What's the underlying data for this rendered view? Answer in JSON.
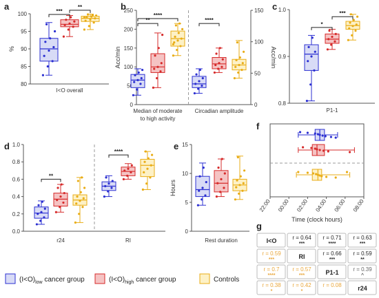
{
  "colors": {
    "low": "#2b2fd1",
    "low_fill": "#d8dbf6",
    "high": "#d62a2a",
    "high_fill": "#f5c3c3",
    "ctrl": "#e9ad17",
    "ctrl_fill": "#fdf1c6",
    "axis": "#555555",
    "divider": "#999999",
    "sig": "#222222",
    "table_black": "#222222",
    "table_orange": "#e9a63a"
  },
  "panel_letters": {
    "a": "a",
    "b": "b",
    "c": "c",
    "d": "d",
    "e": "e",
    "f": "f",
    "g": "g"
  },
  "chart_data": [
    {
      "id": "a",
      "type": "box",
      "ylabel": "%",
      "ylim": [
        80,
        100
      ],
      "yticks": [
        "80",
        "85",
        "90",
        "95",
        "100"
      ],
      "xlabels": [
        "I<O overall"
      ],
      "groups": [
        {
          "x": 0,
          "series": "low",
          "min": 82.5,
          "q1": 86.5,
          "median": 90.0,
          "q3": 93.0,
          "max": 97.5,
          "points": [
            82.5,
            85,
            86.5,
            88,
            89.5,
            90.5,
            92,
            93,
            95,
            97
          ]
        },
        {
          "x": 0,
          "series": "high",
          "min": 93.5,
          "q1": 96.3,
          "median": 97.0,
          "q3": 98.3,
          "max": 99.5,
          "points": [
            93.5,
            95.5,
            96.3,
            96.8,
            97.2,
            97.8,
            98.3,
            99
          ]
        },
        {
          "x": 0,
          "series": "ctrl",
          "min": 95.5,
          "q1": 97.8,
          "median": 98.7,
          "q3": 99.3,
          "max": 99.9,
          "points": [
            95.5,
            96.5,
            97.5,
            98,
            98.3,
            98.7,
            99,
            99.2,
            99.5,
            99.8,
            99.6,
            98.9
          ]
        }
      ],
      "significance": [
        {
          "from": 0,
          "to": 1,
          "y": 99.8,
          "label": "***"
        },
        {
          "from": 1,
          "to": 2,
          "y": 101.0,
          "label": "**"
        }
      ]
    },
    {
      "id": "b",
      "type": "box",
      "ylabel": "Acc/min",
      "ylabel_right": "Acc/min",
      "ylim": [
        0,
        250
      ],
      "yticks": [
        "0",
        "50",
        "100",
        "150",
        "200",
        "250"
      ],
      "ylim_right": [
        0,
        150
      ],
      "yticks_right": [
        "0",
        "50",
        "100",
        "150"
      ],
      "xlabels": [
        "Median of moderate",
        "to high activity",
        "Circadian amplitude"
      ],
      "groups": [
        {
          "x": 0,
          "series": "low",
          "min": 25,
          "q1": 45,
          "median": 65,
          "q3": 80,
          "max": 95,
          "points": [
            25,
            40,
            55,
            60,
            65,
            70,
            78,
            85,
            92
          ]
        },
        {
          "x": 0,
          "series": "high",
          "min": 45,
          "q1": 85,
          "median": 100,
          "q3": 135,
          "max": 190,
          "points": [
            45,
            70,
            88,
            95,
            100,
            110,
            130,
            150,
            185
          ]
        },
        {
          "x": 0,
          "series": "ctrl",
          "min": 130,
          "q1": 155,
          "median": 175,
          "q3": 195,
          "max": 215,
          "points": [
            130,
            145,
            155,
            165,
            170,
            175,
            180,
            190,
            200,
            210,
            215,
            160
          ]
        },
        {
          "x": 1,
          "series": "low",
          "min": 30,
          "q1": 45,
          "median": 55,
          "q3": 75,
          "max": 95,
          "points": [
            30,
            42,
            50,
            55,
            62,
            70,
            80,
            92
          ]
        },
        {
          "x": 1,
          "series": "high",
          "min": 85,
          "q1": 95,
          "median": 108,
          "q3": 125,
          "max": 150,
          "points": [
            85,
            95,
            100,
            105,
            110,
            120,
            135,
            150
          ]
        },
        {
          "x": 1,
          "series": "ctrl",
          "min": 70,
          "q1": 92,
          "median": 105,
          "q3": 120,
          "max": 170,
          "points": [
            70,
            85,
            92,
            100,
            105,
            110,
            118,
            125,
            140,
            165
          ]
        }
      ],
      "significance": [
        {
          "x": 0,
          "from": 0,
          "to": 1,
          "y": 215,
          "label": "**"
        },
        {
          "x": 0,
          "from": 0,
          "to": 2,
          "y": 228,
          "label": "****"
        },
        {
          "x": 1,
          "from": 0,
          "to": 1,
          "y": 215,
          "label": "****"
        }
      ]
    },
    {
      "id": "c",
      "type": "box",
      "ylim": [
        0.8,
        1.0
      ],
      "yticks": [
        "0.8",
        "0.9",
        "1.0"
      ],
      "xlabels": [
        "P1-1"
      ],
      "groups": [
        {
          "x": 0,
          "series": "low",
          "min": 0.805,
          "q1": 0.87,
          "median": 0.905,
          "q3": 0.925,
          "max": 0.945,
          "points": [
            0.805,
            0.84,
            0.87,
            0.89,
            0.9,
            0.91,
            0.92,
            0.94
          ]
        },
        {
          "x": 0,
          "series": "high",
          "min": 0.915,
          "q1": 0.928,
          "median": 0.937,
          "q3": 0.948,
          "max": 0.958,
          "points": [
            0.915,
            0.925,
            0.932,
            0.937,
            0.942,
            0.948,
            0.955
          ]
        },
        {
          "x": 0,
          "series": "ctrl",
          "min": 0.935,
          "q1": 0.958,
          "median": 0.966,
          "q3": 0.975,
          "max": 0.99,
          "points": [
            0.935,
            0.945,
            0.955,
            0.96,
            0.965,
            0.968,
            0.972,
            0.978,
            0.985,
            0.99
          ]
        }
      ],
      "significance": [
        {
          "from": 0,
          "to": 1,
          "y": 0.962,
          "label": "*"
        },
        {
          "from": 1,
          "to": 2,
          "y": 0.985,
          "label": "***"
        }
      ]
    },
    {
      "id": "d",
      "type": "box",
      "ylim": [
        0,
        1.0
      ],
      "yticks": [
        "0.0",
        "0.2",
        "0.4",
        "0.6",
        "0.8",
        "1.0"
      ],
      "xlabels": [
        "r24",
        "RI"
      ],
      "groups": [
        {
          "x": 0,
          "series": "low",
          "min": 0.08,
          "q1": 0.15,
          "median": 0.21,
          "q3": 0.28,
          "max": 0.35,
          "points": [
            0.08,
            0.12,
            0.16,
            0.2,
            0.22,
            0.26,
            0.3,
            0.34
          ]
        },
        {
          "x": 0,
          "series": "high",
          "min": 0.22,
          "q1": 0.29,
          "median": 0.37,
          "q3": 0.44,
          "max": 0.54,
          "points": [
            0.22,
            0.28,
            0.33,
            0.36,
            0.4,
            0.44,
            0.5,
            0.54
          ]
        },
        {
          "x": 0,
          "series": "ctrl",
          "min": 0.1,
          "q1": 0.3,
          "median": 0.36,
          "q3": 0.42,
          "max": 0.62,
          "points": [
            0.1,
            0.2,
            0.28,
            0.32,
            0.35,
            0.38,
            0.4,
            0.45,
            0.5,
            0.58,
            0.62
          ]
        },
        {
          "x": 1,
          "series": "low",
          "min": 0.4,
          "q1": 0.47,
          "median": 0.52,
          "q3": 0.57,
          "max": 0.64,
          "points": [
            0.4,
            0.46,
            0.5,
            0.52,
            0.55,
            0.58,
            0.62
          ]
        },
        {
          "x": 1,
          "series": "high",
          "min": 0.6,
          "q1": 0.64,
          "median": 0.69,
          "q3": 0.74,
          "max": 0.78,
          "points": [
            0.6,
            0.64,
            0.68,
            0.7,
            0.72,
            0.76
          ]
        },
        {
          "x": 1,
          "series": "ctrl",
          "min": 0.48,
          "q1": 0.63,
          "median": 0.76,
          "q3": 0.83,
          "max": 0.92,
          "points": [
            0.48,
            0.55,
            0.62,
            0.68,
            0.72,
            0.76,
            0.8,
            0.84,
            0.88,
            0.92
          ]
        }
      ],
      "significance": [
        {
          "x": 0,
          "from": 0,
          "to": 1,
          "y": 0.6,
          "label": "**"
        },
        {
          "x": 1,
          "from": 0,
          "to": 1,
          "y": 0.88,
          "label": "****"
        }
      ]
    },
    {
      "id": "e",
      "type": "box",
      "ylabel": "Hours",
      "ylim": [
        0,
        15
      ],
      "yticks": [
        "0",
        "5",
        "10",
        "15"
      ],
      "xlabels": [
        "Rest duration"
      ],
      "groups": [
        {
          "x": 0,
          "series": "low",
          "min": 4.5,
          "q1": 6.0,
          "median": 7.2,
          "q3": 9.5,
          "max": 11.8,
          "points": [
            4.5,
            5.5,
            6.2,
            7,
            7.5,
            8.5,
            9.5,
            11
          ]
        },
        {
          "x": 0,
          "series": "high",
          "min": 6.0,
          "q1": 6.8,
          "median": 8.3,
          "q3": 10.5,
          "max": 12.5,
          "points": [
            6,
            6.8,
            7.5,
            8.3,
            9,
            10,
            11,
            12.5
          ]
        },
        {
          "x": 0,
          "series": "ctrl",
          "min": 5.5,
          "q1": 7.0,
          "median": 8.0,
          "q3": 9.0,
          "max": 13.0,
          "points": [
            5.5,
            6.5,
            7,
            7.6,
            8,
            8.3,
            8.8,
            9.5,
            10.5,
            12.8
          ]
        }
      ]
    },
    {
      "id": "f",
      "type": "box-horizontal",
      "xlabel": "Time (clock hours)",
      "xlim": [
        -2,
        8
      ],
      "xticks": [
        "22:00",
        "00:00",
        "02:00",
        "04:00",
        "06:00",
        "08:00"
      ],
      "groups": [
        {
          "series": "low",
          "min": 1.0,
          "q1": 2.8,
          "median": 3.3,
          "q3": 3.8,
          "max": 5.2,
          "points": [
            1.2,
            2.0,
            2.8,
            3.1,
            3.3,
            3.6,
            3.9,
            4.5,
            5.0
          ]
        },
        {
          "series": "high",
          "min": 1.0,
          "q1": 2.5,
          "median": 3.0,
          "q3": 3.8,
          "max": 7.0,
          "points": [
            1.5,
            2.4,
            2.8,
            3.0,
            3.3,
            3.7,
            4.2,
            6.5
          ]
        },
        {
          "series": "ctrl",
          "min": 0.8,
          "q1": 2.5,
          "median": 3.1,
          "q3": 3.5,
          "max": 6.5,
          "points": [
            1.0,
            2.0,
            2.6,
            2.9,
            3.1,
            3.3,
            3.5,
            4.0,
            5.0,
            6.2
          ]
        }
      ]
    },
    {
      "id": "g",
      "type": "table",
      "cells": [
        [
          {
            "r": "I<O",
            "s": "",
            "c": "label"
          },
          {
            "r": "r = 0.64",
            "s": "***",
            "c": "black"
          },
          {
            "r": "r = 0.71",
            "s": "****",
            "c": "black"
          },
          {
            "r": "r = 0.63",
            "s": "***",
            "c": "black"
          }
        ],
        [
          {
            "r": "r = 0.59",
            "s": "***",
            "c": "orange"
          },
          {
            "r": "RI",
            "s": "",
            "c": "label"
          },
          {
            "r": "r = 0.66",
            "s": "***",
            "c": "black"
          },
          {
            "r": "r = 0.59",
            "s": "**",
            "c": "black"
          }
        ],
        [
          {
            "r": "r = 0.7",
            "s": "****",
            "c": "orange"
          },
          {
            "r": "r = 0.57",
            "s": "***",
            "c": "orange"
          },
          {
            "r": "P1-1",
            "s": "",
            "c": "label"
          },
          {
            "r": "r = 0.39",
            "s": "^",
            "c": "gray"
          }
        ],
        [
          {
            "r": "r = 0.38",
            "s": "*",
            "c": "orange"
          },
          {
            "r": "r = 0.42",
            "s": "*",
            "c": "orange"
          },
          {
            "r": "r = 0.08",
            "s": "",
            "c": "orange"
          },
          {
            "r": "r24",
            "s": "",
            "c": "label"
          }
        ]
      ]
    }
  ],
  "legend": {
    "items": [
      {
        "series": "low",
        "prefix": "(I<O)",
        "sub": "low",
        "suffix": " cancer group"
      },
      {
        "series": "high",
        "prefix": "(I<O)",
        "sub": "high",
        "suffix": " cancer group"
      },
      {
        "series": "ctrl",
        "prefix": "Controls",
        "sub": "",
        "suffix": ""
      }
    ]
  }
}
